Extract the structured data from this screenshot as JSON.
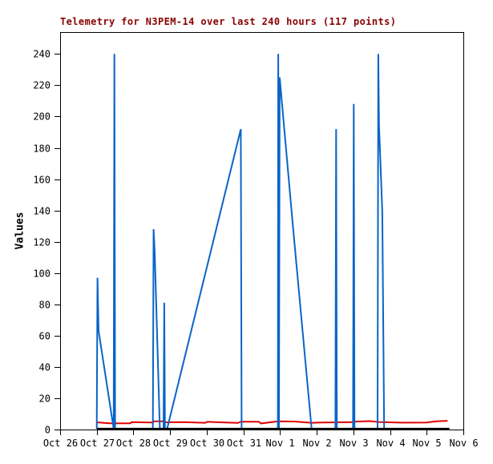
{
  "header": {
    "title": "Telemetry for N3PEM-14 over last 240 hours (117 points)"
  },
  "chart_data": {
    "type": "line",
    "title": "Telemetry for N3PEM-14 over last 240 hours (117 points)",
    "xlabel": "",
    "ylabel": "Values",
    "grid": false,
    "legend": "none",
    "x_unit": "days since Oct 26",
    "x_axis": {
      "tick_labels": [
        "Oct 26",
        "Oct 27",
        "Oct 28",
        "Oct 29",
        "Oct 30",
        "Oct 31",
        "Nov 1",
        "Nov 2",
        "Nov 3",
        "Nov 4",
        "Nov 5",
        "Nov 6"
      ],
      "tick_days": [
        0,
        1,
        2,
        3,
        4,
        5,
        6,
        7,
        8,
        9,
        10,
        11
      ],
      "range_days": [
        0,
        11
      ]
    },
    "y_axis": {
      "ticks": [
        0,
        20,
        40,
        60,
        80,
        100,
        120,
        140,
        160,
        180,
        200,
        220,
        240
      ],
      "range": [
        0,
        254
      ]
    },
    "colors": {
      "title": "#880000",
      "axis": "#000000",
      "background": "#ffffff",
      "telemetry_line": "#0a64c8",
      "baseline_red": "#e00000",
      "baseline_black": "#000000"
    },
    "series": [
      {
        "name": "red-baseline",
        "color": "#e00000",
        "width": 2,
        "points": [
          [
            1.0,
            4.6
          ],
          [
            1.35,
            4.0
          ],
          [
            1.92,
            4.0
          ],
          [
            1.95,
            4.7
          ],
          [
            2.53,
            4.5
          ],
          [
            2.56,
            5.2
          ],
          [
            2.84,
            5.2
          ],
          [
            2.88,
            4.6
          ],
          [
            3.4,
            4.7
          ],
          [
            3.95,
            4.3
          ],
          [
            4.02,
            4.9
          ],
          [
            4.85,
            4.2
          ],
          [
            4.93,
            5.0
          ],
          [
            5.42,
            5.0
          ],
          [
            5.48,
            3.9
          ],
          [
            5.83,
            4.9
          ],
          [
            5.97,
            5.3
          ],
          [
            6.4,
            5.1
          ],
          [
            6.86,
            4.3
          ],
          [
            7.1,
            4.5
          ],
          [
            7.6,
            4.6
          ],
          [
            8.0,
            4.7
          ],
          [
            8.07,
            5.1
          ],
          [
            8.45,
            5.4
          ],
          [
            8.7,
            4.8
          ],
          [
            9.3,
            4.4
          ],
          [
            10.0,
            4.5
          ],
          [
            10.25,
            5.2
          ],
          [
            10.57,
            5.6
          ]
        ]
      },
      {
        "name": "telemetry-values",
        "color": "#0a64c8",
        "width": 2,
        "points": [
          [
            1.0,
            0.5
          ],
          [
            1.02,
            97
          ],
          [
            1.05,
            63
          ],
          [
            1.46,
            0.5
          ],
          [
            1.48,
            240
          ],
          [
            1.5,
            0.5
          ],
          [
            2.53,
            0.5
          ],
          [
            2.55,
            128
          ],
          [
            2.58,
            113
          ],
          [
            2.72,
            0.5
          ],
          [
            2.82,
            0.5
          ],
          [
            2.84,
            81
          ],
          [
            2.86,
            0.5
          ],
          [
            2.92,
            0.5
          ],
          [
            4.93,
            192
          ],
          [
            4.95,
            0.5
          ],
          [
            5.94,
            0.5
          ],
          [
            5.95,
            240
          ],
          [
            5.97,
            0.5
          ],
          [
            5.99,
            225
          ],
          [
            6.35,
            130
          ],
          [
            6.86,
            0.5
          ],
          [
            7.51,
            0.5
          ],
          [
            7.53,
            192
          ],
          [
            7.55,
            0.5
          ],
          [
            7.99,
            0.5
          ],
          [
            8.01,
            208
          ],
          [
            8.03,
            0.5
          ],
          [
            8.66,
            0.5
          ],
          [
            8.68,
            240
          ],
          [
            8.7,
            194
          ],
          [
            8.73,
            176
          ],
          [
            8.76,
            157
          ],
          [
            8.79,
            139
          ],
          [
            8.82,
            55
          ],
          [
            8.84,
            0.5
          ],
          [
            10.6,
            0.5
          ]
        ]
      },
      {
        "name": "black-baseline",
        "color": "#000000",
        "width": 3,
        "points": [
          [
            1.0,
            0.3
          ],
          [
            10.62,
            0.3
          ]
        ]
      }
    ]
  }
}
